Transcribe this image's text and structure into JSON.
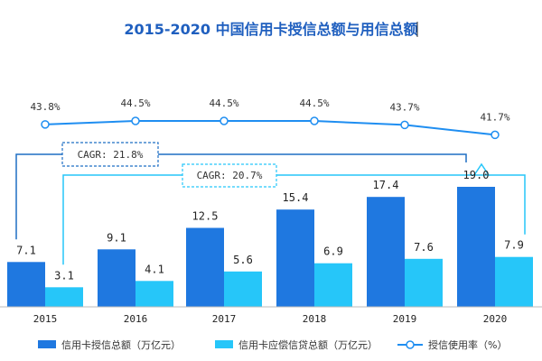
{
  "chart_data": {
    "type": "bar",
    "title": "2015-2020 中国信用卡授信总额与用信总额",
    "categories": [
      "2015",
      "2016",
      "2017",
      "2018",
      "2019",
      "2020"
    ],
    "series": [
      {
        "name": "信用卡授信总额（万亿元）",
        "values": [
          7.1,
          9.1,
          12.5,
          15.4,
          17.4,
          19.0
        ],
        "color": "#1f78e0"
      },
      {
        "name": "信用卡应偿信贷总额（万亿元）",
        "values": [
          3.1,
          4.1,
          5.6,
          6.9,
          7.6,
          7.9
        ],
        "color": "#26c6f9"
      }
    ],
    "bar_labels": [
      [
        "7.1",
        "9.1",
        "12.5",
        "15.4",
        "17.4",
        "19.0"
      ],
      [
        "3.1",
        "4.1",
        "5.6",
        "6.9",
        "7.6",
        "7.9"
      ]
    ],
    "line_series": {
      "name": "授信使用率（%）",
      "values": [
        43.8,
        44.5,
        44.5,
        44.5,
        43.7,
        41.7
      ],
      "labels": [
        "43.8%",
        "44.5%",
        "44.5%",
        "44.5%",
        "43.7%",
        "41.7%"
      ],
      "color": "#1f8ef1"
    },
    "annotations": [
      {
        "text": "CAGR: 21.8%",
        "series": 0,
        "from": "2015",
        "to": "2020",
        "color": "#1f6fc4"
      },
      {
        "text": "CAGR: 20.7%",
        "series": 1,
        "from": "2015",
        "to": "2020",
        "color": "#26c6f9"
      }
    ],
    "ylim": [
      0,
      20
    ],
    "grid": false,
    "legend_position": "bottom"
  }
}
